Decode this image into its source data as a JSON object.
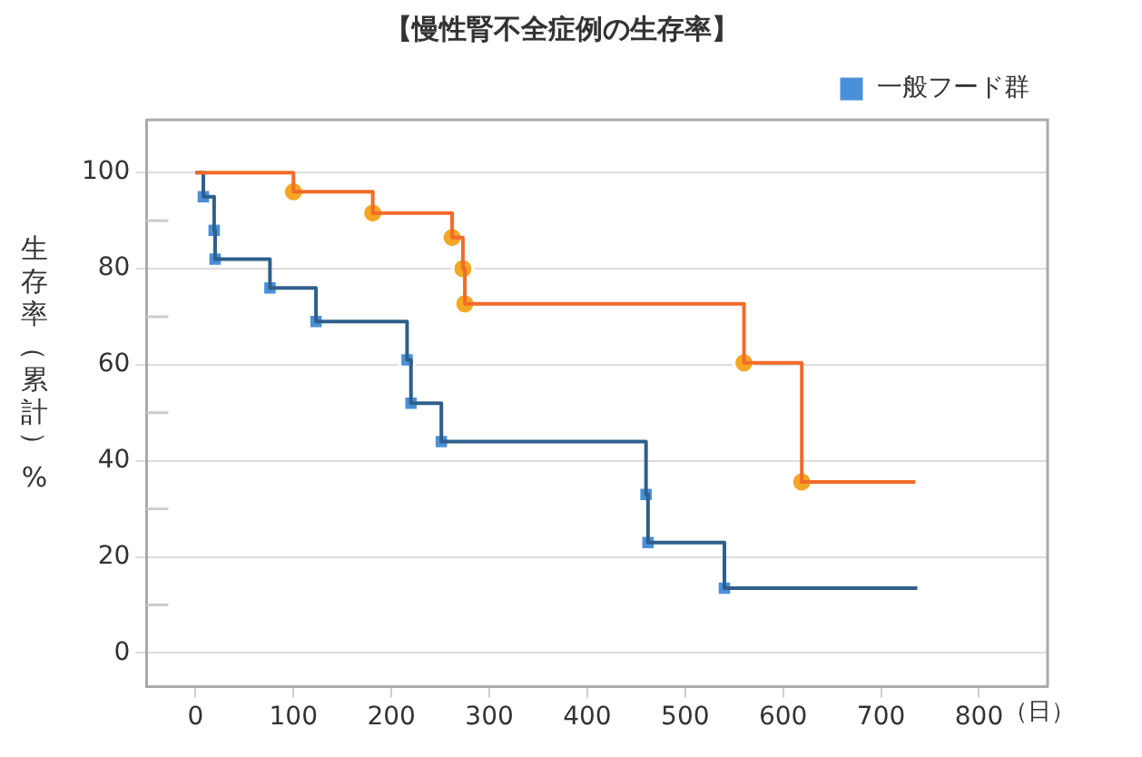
{
  "chart_data": {
    "type": "step",
    "title": "【慢性腎不全症例の生存率】",
    "ylabel": "生存率（累計）%",
    "xlabel": "（日）",
    "xlim": [
      -50,
      870
    ],
    "xticks": [
      0,
      100,
      200,
      300,
      400,
      500,
      600,
      700,
      800
    ],
    "ylim": [
      -7,
      111
    ],
    "yticks": [
      0,
      {
        "value": 10,
        "label": null
      },
      20,
      {
        "value": 30,
        "label": null
      },
      40,
      {
        "value": 50,
        "label": null
      },
      60,
      {
        "value": 70,
        "label": null
      },
      80,
      {
        "value": 90,
        "label": null
      },
      100
    ],
    "grid": "y",
    "legend": "top right",
    "line_style": "solid",
    "series": [
      {
        "color": "#f26b2a",
        "marker": "none",
        "x": [
          0,
          100,
          181,
          262,
          273,
          275,
          560,
          619,
          735
        ],
        "values": [
          100,
          96,
          91.6,
          86.5,
          80,
          72.7,
          60.4,
          35.6,
          35.6
        ]
      },
      {
        "type": "scatter",
        "color": "#f5a623",
        "marker": "circle",
        "x": [
          100,
          181,
          262,
          273,
          275,
          560,
          619
        ],
        "values": [
          96,
          91.6,
          86.5,
          80,
          72.7,
          60.4,
          35.6
        ]
      },
      {
        "color": "#2f5f8a",
        "marker": "none",
        "x": [
          0,
          8,
          19,
          20,
          76,
          123,
          216,
          220,
          251,
          460,
          462,
          540,
          737
        ],
        "values": [
          100,
          95,
          88,
          82,
          76,
          69,
          61,
          52,
          44,
          33,
          23,
          13.5,
          13.5
        ]
      },
      {
        "type": "scatter",
        "name": "一般フード群",
        "color": "#4a90d9",
        "marker": "square",
        "x": [
          8,
          19,
          20,
          76,
          123,
          216,
          220,
          251,
          460,
          462,
          540
        ],
        "values": [
          95,
          88,
          82,
          76,
          69,
          61,
          52,
          44,
          33,
          23,
          13.5
        ]
      }
    ]
  }
}
